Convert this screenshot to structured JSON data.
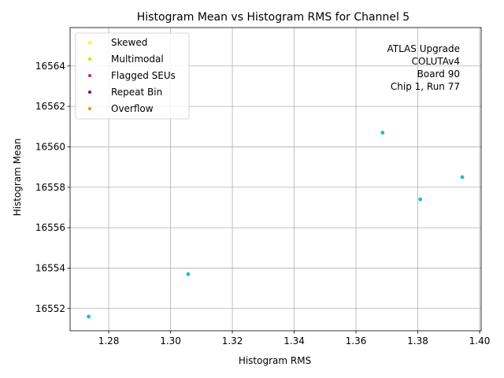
{
  "chart_data": {
    "type": "scatter",
    "title": "Histogram Mean vs Histogram RMS for Channel 5",
    "xlabel": "Histogram RMS",
    "ylabel": "Histogram Mean",
    "xlim": [
      1.2675,
      1.4005
    ],
    "ylim": [
      16550.9,
      16565.9
    ],
    "xticks": [
      "1.28",
      "1.30",
      "1.32",
      "1.34",
      "1.36",
      "1.38",
      "1.40"
    ],
    "yticks": [
      "16552",
      "16554",
      "16556",
      "16558",
      "16560",
      "16562",
      "16564"
    ],
    "grid": true,
    "legend_position": "top-left",
    "legend": [
      {
        "name": "Skewed",
        "color": "#ffff00"
      },
      {
        "name": "Multimodal",
        "color": "#99ff00"
      },
      {
        "name": "Flagged SEUs",
        "color": "#e0204a"
      },
      {
        "name": "Repeat Bin",
        "color": "#800080"
      },
      {
        "name": "Overflow",
        "color": "#ff8800"
      }
    ],
    "annotation": [
      "ATLAS Upgrade",
      "COLUTAv4",
      "Board 90",
      "Chip 1, Run 77"
    ],
    "series": [
      {
        "color": "#17becf",
        "points": [
          {
            "x": 1.2735,
            "y": 16551.6
          },
          {
            "x": 1.3057,
            "y": 16553.7
          },
          {
            "x": 1.3686,
            "y": 16560.7
          },
          {
            "x": 1.3808,
            "y": 16557.4
          },
          {
            "x": 1.3944,
            "y": 16558.5
          }
        ]
      }
    ]
  }
}
